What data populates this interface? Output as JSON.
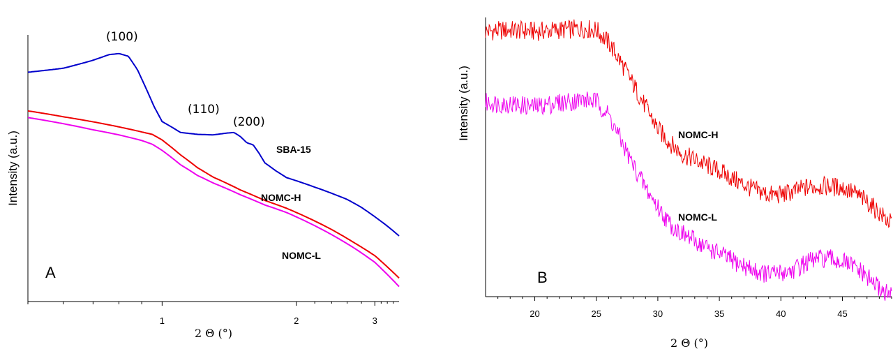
{
  "chart_data": [
    {
      "panel": "A",
      "type": "line",
      "panel_label": "A",
      "xlabel": "2 Θ (°)",
      "ylabel": "Intensity (a.u.)",
      "x_scale": "log",
      "xlim": [
        0.5,
        3.4
      ],
      "ylim": [
        0,
        100
      ],
      "x_ticks": [
        1,
        2,
        3
      ],
      "grid": false,
      "peak_labels": [
        {
          "text": "(100)",
          "x": 0.82,
          "y": 96
        },
        {
          "text": "(110)",
          "x": 1.42,
          "y": 70
        },
        {
          "text": "(200)",
          "x": 1.68,
          "y": 62
        }
      ],
      "series": [
        {
          "name": "SBA-15",
          "color": "#0000cc",
          "x": [
            0.5,
            0.6,
            0.7,
            0.76,
            0.8,
            0.84,
            0.88,
            0.92,
            0.96,
            1.0,
            1.1,
            1.2,
            1.3,
            1.4,
            1.45,
            1.5,
            1.55,
            1.6,
            1.65,
            1.7,
            1.8,
            1.9,
            2.0,
            2.2,
            2.4,
            2.6,
            2.8,
            3.0,
            3.2,
            3.4
          ],
          "y": [
            86.0,
            87.5,
            90.5,
            92.6,
            93.0,
            92.0,
            87.0,
            80.0,
            73.0,
            67.5,
            63.4,
            62.7,
            62.5,
            63.2,
            63.4,
            61.8,
            59.5,
            58.8,
            55.6,
            52.0,
            49.0,
            46.5,
            45.3,
            42.9,
            40.6,
            38.3,
            35.3,
            31.8,
            28.3,
            24.6
          ]
        },
        {
          "name": "NOMC-H",
          "color": "#ee0000",
          "x": [
            0.5,
            0.6,
            0.7,
            0.8,
            0.9,
            0.95,
            1.0,
            1.1,
            1.2,
            1.3,
            1.5,
            1.7,
            1.9,
            2.1,
            2.4,
            2.7,
            3.0,
            3.4
          ],
          "y": [
            71.5,
            69.3,
            67.4,
            65.5,
            63.6,
            62.7,
            60.6,
            55.0,
            50.2,
            46.7,
            41.8,
            37.9,
            35.0,
            31.8,
            27.0,
            22.0,
            17.2,
            8.8
          ]
        },
        {
          "name": "NOMC-L",
          "color": "#ee00ee",
          "x": [
            0.5,
            0.6,
            0.7,
            0.8,
            0.9,
            0.95,
            1.0,
            1.1,
            1.2,
            1.3,
            1.5,
            1.7,
            1.9,
            2.1,
            2.4,
            2.7,
            3.0,
            3.4
          ],
          "y": [
            69.0,
            66.7,
            64.4,
            62.5,
            60.4,
            59.0,
            56.7,
            51.3,
            47.3,
            44.5,
            40.0,
            36.2,
            33.4,
            30.1,
            25.1,
            20.0,
            14.7,
            5.6
          ]
        }
      ]
    },
    {
      "panel": "B",
      "type": "line",
      "panel_label": "B",
      "xlabel": "2 Θ (°)",
      "ylabel": "Intensity (a.u.)",
      "xlim": [
        16,
        49
      ],
      "ylim": [
        0,
        100
      ],
      "x_ticks": [
        20,
        25,
        30,
        35,
        40,
        45
      ],
      "grid": false,
      "series": [
        {
          "name": "NOMC-H",
          "color": "#ee0000",
          "x": [
            16,
            18,
            20,
            22,
            24,
            25,
            26,
            27,
            28,
            29,
            30,
            31,
            32,
            33,
            34,
            35,
            36,
            37,
            38,
            39,
            40,
            41,
            42,
            43,
            44,
            45,
            46,
            47,
            48,
            49
          ],
          "y": [
            95,
            95.5,
            95,
            95.5,
            96,
            95.5,
            91,
            84,
            76,
            68,
            60,
            55,
            51,
            49,
            47,
            45,
            42.5,
            40,
            38,
            36.5,
            36.5,
            37.5,
            39,
            39.5,
            39.5,
            39,
            37,
            34,
            30,
            26
          ]
        },
        {
          "name": "NOMC-L",
          "color": "#ee00ee",
          "x": [
            16,
            18,
            20,
            22,
            24,
            25,
            26,
            27,
            28,
            29,
            30,
            31,
            32,
            33,
            34,
            35,
            36,
            37,
            38,
            39,
            40,
            41,
            42,
            43,
            44,
            45,
            46,
            47,
            48,
            49
          ],
          "y": [
            69.5,
            69,
            68,
            69.5,
            70.5,
            70,
            65,
            56,
            47,
            39,
            32,
            26,
            22.5,
            20,
            17.5,
            15.5,
            13,
            11,
            9,
            8,
            8.5,
            9.5,
            12,
            13.5,
            13.5,
            12.5,
            10.5,
            7,
            3,
            0
          ]
        }
      ]
    }
  ]
}
